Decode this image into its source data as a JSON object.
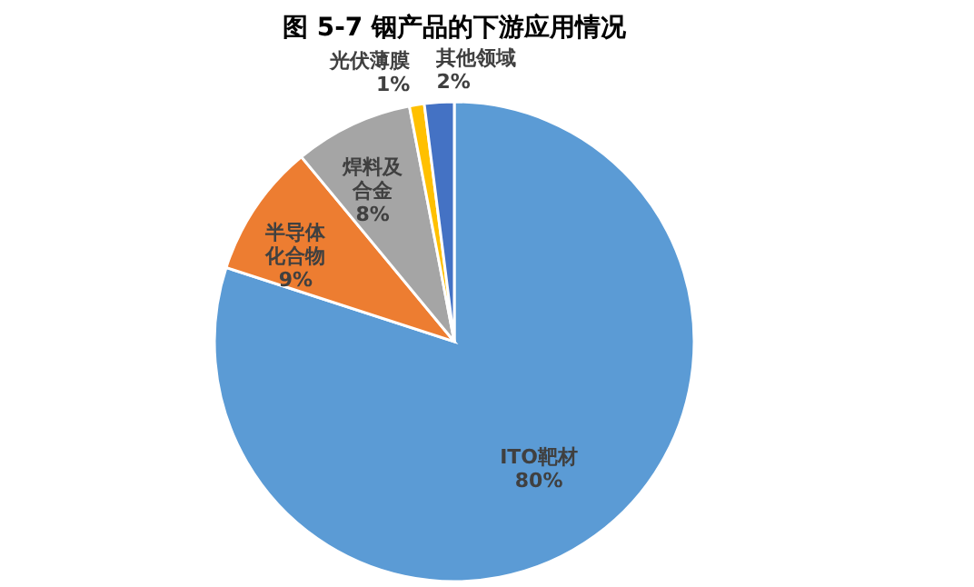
{
  "chart_data": {
    "type": "pie",
    "title": "图 5-7 铟产品的下游应用情况",
    "categories": [
      "ITO靶材",
      "半导体化合物",
      "焊料及合金",
      "光伏薄膜",
      "其他领域"
    ],
    "values": [
      80,
      9,
      8,
      1,
      2
    ],
    "value_labels": [
      "80%",
      "9%",
      "8%",
      "1%",
      "2%"
    ],
    "colors": [
      "#5b9bd5",
      "#ed7d31",
      "#a5a5a5",
      "#ffc000",
      "#4472c4"
    ],
    "legend": false
  }
}
